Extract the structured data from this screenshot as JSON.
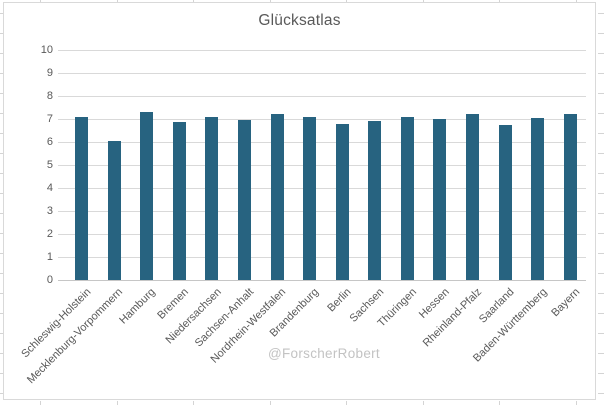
{
  "chart": {
    "title": "Glücksatlas",
    "watermark": "@ForscherRobert"
  },
  "chart_data": {
    "type": "bar",
    "title": "Glücksatlas",
    "categories": [
      "Schleswig-Holstein",
      "Mecklenburg-Vorpommern",
      "Hamburg",
      "Bremen",
      "Niedersachsen",
      "Sachsen-Anhalt",
      "Nordrhein-Westfalen",
      "Brandenburg",
      "Berlin",
      "Sachsen",
      "Thüringen",
      "Hessen",
      "Rheinland-Pfalz",
      "Saarland",
      "Baden-Württemberg",
      "Bayern"
    ],
    "values": [
      7.1,
      6.05,
      7.3,
      6.85,
      7.1,
      6.95,
      7.2,
      7.1,
      6.8,
      6.9,
      7.1,
      7.0,
      7.2,
      6.75,
      7.05,
      7.2
    ],
    "xlabel": "",
    "ylabel": "",
    "ylim": [
      0,
      10
    ],
    "yticks": [
      0,
      1,
      2,
      3,
      4,
      5,
      6,
      7,
      8,
      9,
      10
    ],
    "grid": true,
    "legend": false,
    "annotations": [
      "@ForscherRobert"
    ],
    "bar_color": "#276380",
    "gridline_color": "#D9D9D9",
    "axis_line_color": "#C6C6C6",
    "text_color": "#595959",
    "watermark_color": "#C3C3C3"
  }
}
